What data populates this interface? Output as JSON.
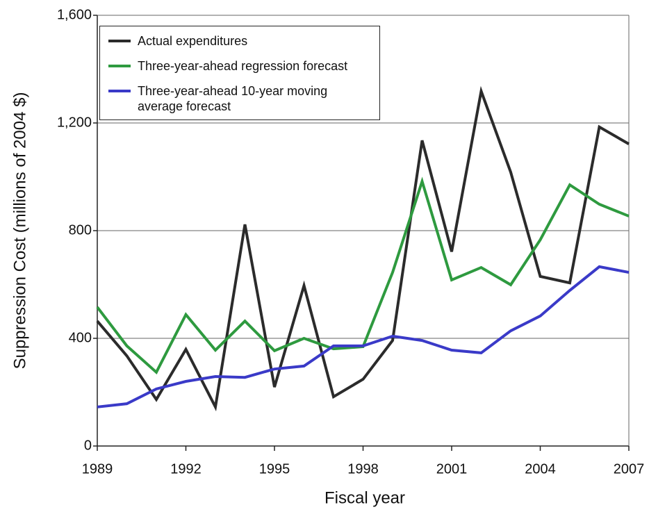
{
  "chart_data": {
    "type": "line",
    "y_label": "Suppression Cost (millions of 2004 $)",
    "x_label": "Fiscal year",
    "x": [
      1989,
      1990,
      1991,
      1992,
      1993,
      1994,
      1995,
      1996,
      1997,
      1998,
      1999,
      2000,
      2001,
      2002,
      2003,
      2004,
      2005,
      2006,
      2007
    ],
    "series": [
      {
        "name": "Actual expenditures",
        "color": "#2b2b2b",
        "values": [
          464,
          335,
          173,
          359,
          145,
          823,
          219,
          596,
          183,
          248,
          392,
          1135,
          722,
          1318,
          1017,
          630,
          606,
          1185,
          1122
        ]
      },
      {
        "name": "Three-year-ahead regression forecast",
        "color": "#2e9a3f",
        "values": [
          516,
          372,
          274,
          488,
          356,
          464,
          354,
          400,
          361,
          369,
          645,
          983,
          617,
          663,
          599,
          766,
          970,
          898,
          854
        ]
      },
      {
        "name": "Three-year-ahead 10-year moving average forecast",
        "color": "#3a3ac8",
        "values": [
          145,
          157,
          212,
          240,
          258,
          255,
          286,
          297,
          372,
          372,
          408,
          392,
          356,
          346,
          428,
          483,
          578,
          666,
          645
        ]
      }
    ],
    "xlim": [
      1989,
      2007
    ],
    "xticks": [
      1989,
      1992,
      1995,
      1998,
      2001,
      2004,
      2007
    ],
    "ylim": [
      0,
      1600
    ],
    "yticks": [
      0,
      400,
      800,
      {
        "value": 1200,
        "label": "1,200"
      },
      {
        "value": 1600,
        "label": "1,600"
      }
    ],
    "grid": true,
    "legend": "upper left"
  }
}
